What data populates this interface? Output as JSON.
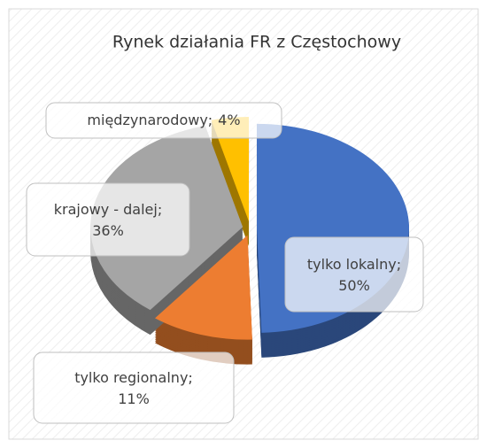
{
  "chart_data": {
    "type": "pie",
    "title": "Rynek działania FR z Częstochowy",
    "categories": [
      "tylko lokalny",
      "tylko regionalny",
      "krajowy - dalej",
      "międzynarodowy"
    ],
    "values": [
      50,
      11,
      36,
      4
    ],
    "value_labels": [
      "50%",
      "11%",
      "36%",
      "4%"
    ],
    "label_separator": ";",
    "colors": [
      "#4472c4",
      "#ed7d31",
      "#a5a5a5",
      "#ffc000"
    ]
  }
}
